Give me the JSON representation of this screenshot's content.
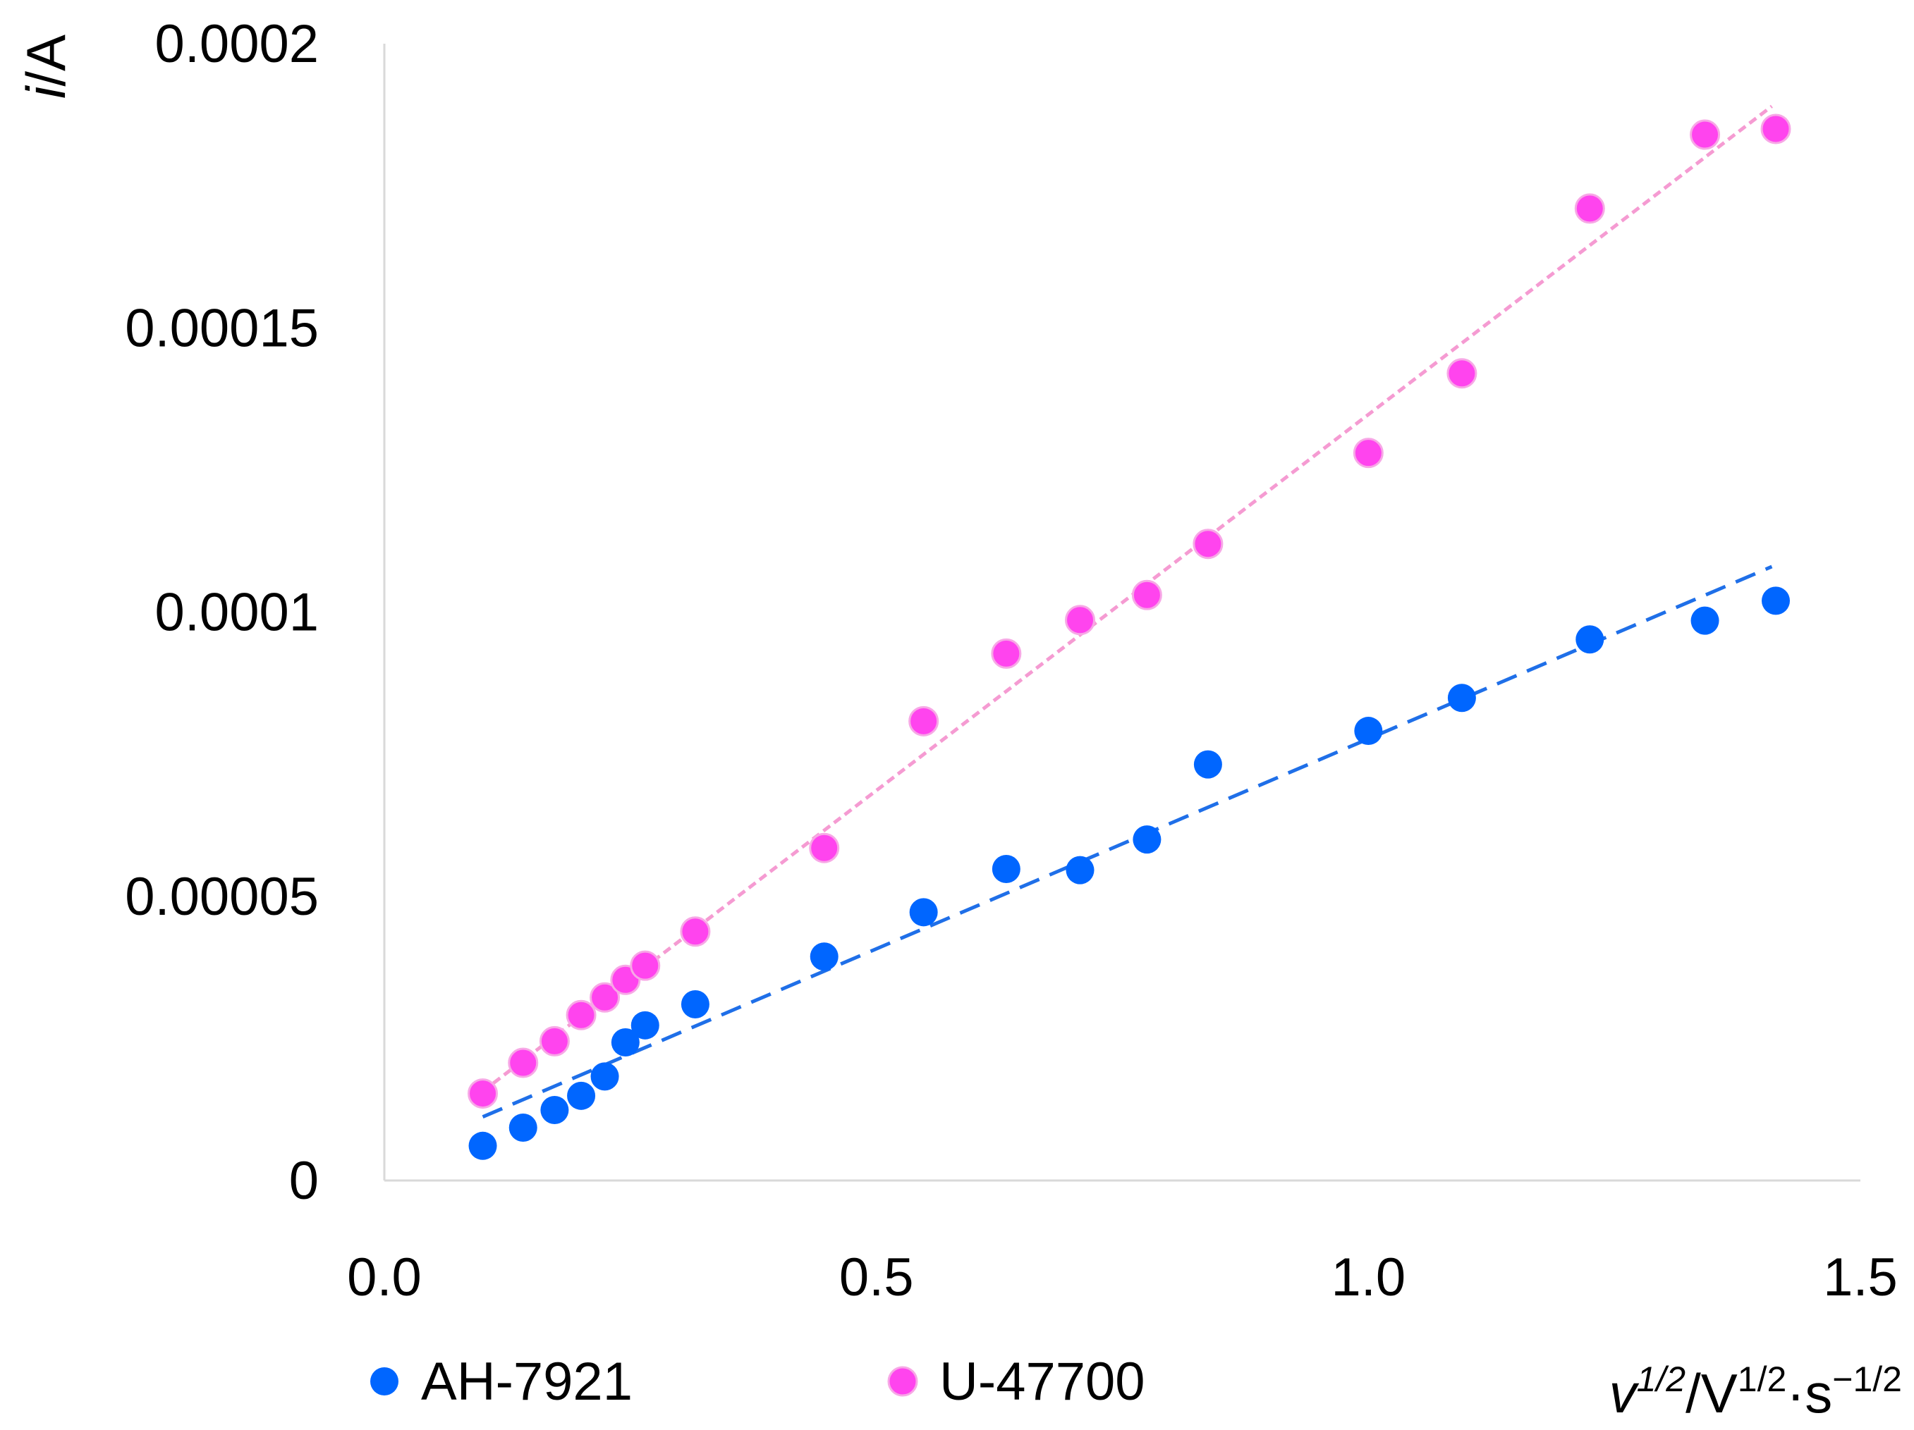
{
  "chart_data": {
    "type": "scatter",
    "title": "",
    "xlabel": {
      "v_symbol": "v",
      "v_exponent": "1/2",
      "slash": "/",
      "unit_V": "V",
      "V_exponent": "1/2",
      "dot": "·",
      "unit_s": "s",
      "s_exponent": "−1/2"
    },
    "ylabel": {
      "symbol": "i",
      "unit": "/A"
    },
    "xlim": [
      0.0,
      1.5
    ],
    "ylim": [
      0,
      0.0002
    ],
    "xticks": [
      {
        "value": 0.0,
        "label": "0.0"
      },
      {
        "value": 0.5,
        "label": "0.5"
      },
      {
        "value": 1.0,
        "label": "1.0"
      },
      {
        "value": 1.5,
        "label": "1.5"
      }
    ],
    "yticks": [
      {
        "value": 0,
        "label": "0"
      },
      {
        "value": 5e-05,
        "label": "0.00005"
      },
      {
        "value": 0.0001,
        "label": "0.0001"
      },
      {
        "value": 0.00015,
        "label": "0.00015"
      },
      {
        "value": 0.0002,
        "label": "0.0002"
      }
    ],
    "grid": false,
    "legend_position": "bottom-left",
    "series": [
      {
        "name": "AH-7921",
        "color": "#0066ff",
        "trendline": {
          "style": "long-dash",
          "x_start": 0.1,
          "x_end": 1.41,
          "y_start": 1.12e-05,
          "y_end": 0.000108
        },
        "points": [
          {
            "x": 0.1,
            "y": 6.1e-06
          },
          {
            "x": 0.141,
            "y": 9.3e-06
          },
          {
            "x": 0.173,
            "y": 1.24e-05
          },
          {
            "x": 0.2,
            "y": 1.49e-05
          },
          {
            "x": 0.224,
            "y": 1.83e-05
          },
          {
            "x": 0.245,
            "y": 2.43e-05
          },
          {
            "x": 0.265,
            "y": 2.73e-05
          },
          {
            "x": 0.316,
            "y": 3.1e-05
          },
          {
            "x": 0.447,
            "y": 3.94e-05
          },
          {
            "x": 0.548,
            "y": 4.72e-05
          },
          {
            "x": 0.632,
            "y": 5.48e-05
          },
          {
            "x": 0.707,
            "y": 5.46e-05
          },
          {
            "x": 0.775,
            "y": 6e-05
          },
          {
            "x": 0.837,
            "y": 7.32e-05
          },
          {
            "x": 1.0,
            "y": 7.91e-05
          },
          {
            "x": 1.095,
            "y": 8.49e-05
          },
          {
            "x": 1.225,
            "y": 9.52e-05
          },
          {
            "x": 1.342,
            "y": 9.85e-05
          },
          {
            "x": 1.414,
            "y": 0.000102
          }
        ]
      },
      {
        "name": "U-47700",
        "color": "#ff44ee",
        "trendline": {
          "style": "short-dash",
          "x_start": 0.1,
          "x_end": 1.41,
          "y_start": 1.57e-05,
          "y_end": 0.000189
        },
        "points": [
          {
            "x": 0.1,
            "y": 1.53e-05
          },
          {
            "x": 0.141,
            "y": 2.07e-05
          },
          {
            "x": 0.173,
            "y": 2.45e-05
          },
          {
            "x": 0.2,
            "y": 2.91e-05
          },
          {
            "x": 0.224,
            "y": 3.22e-05
          },
          {
            "x": 0.245,
            "y": 3.53e-05
          },
          {
            "x": 0.265,
            "y": 3.78e-05
          },
          {
            "x": 0.316,
            "y": 4.38e-05
          },
          {
            "x": 0.447,
            "y": 5.85e-05
          },
          {
            "x": 0.548,
            "y": 8.08e-05
          },
          {
            "x": 0.632,
            "y": 9.27e-05
          },
          {
            "x": 0.707,
            "y": 9.86e-05
          },
          {
            "x": 0.775,
            "y": 0.000103
          },
          {
            "x": 0.837,
            "y": 0.000112
          },
          {
            "x": 1.0,
            "y": 0.000128
          },
          {
            "x": 1.095,
            "y": 0.000142
          },
          {
            "x": 1.225,
            "y": 0.000171
          },
          {
            "x": 1.342,
            "y": 0.000184
          },
          {
            "x": 1.414,
            "y": 0.000185
          }
        ]
      }
    ]
  }
}
